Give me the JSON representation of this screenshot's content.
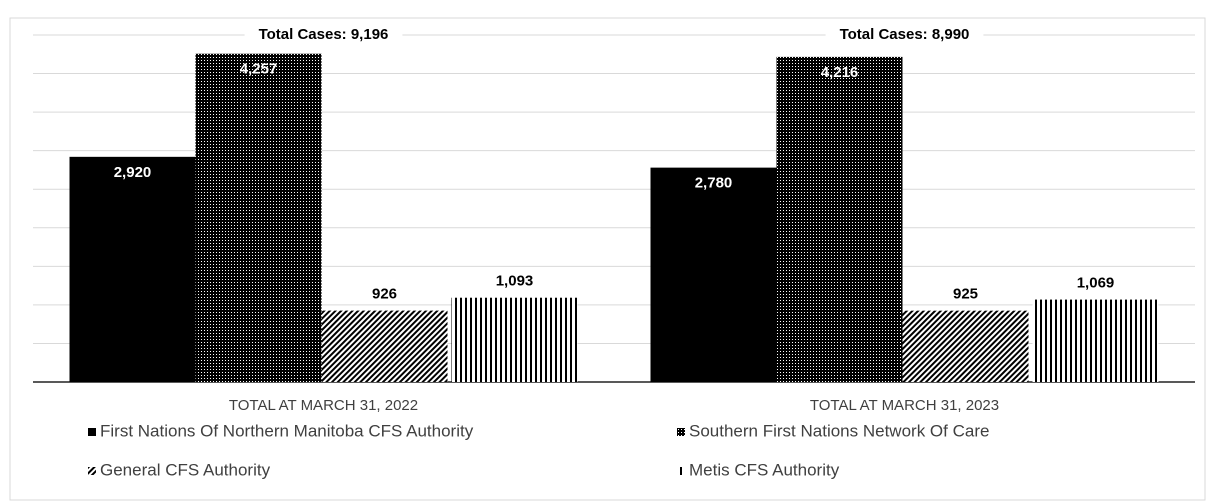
{
  "chart_data": {
    "type": "bar",
    "categories": [
      "TOTAL AT MARCH 31, 2022",
      "TOTAL AT MARCH 31, 2023"
    ],
    "series": [
      {
        "name": "First Nations Of Northern Manitoba CFS Authority",
        "color": "#000000",
        "pattern": "solid",
        "values": [
          2920,
          2780
        ],
        "value_labels": [
          "2,920",
          "2,780"
        ]
      },
      {
        "name": "Southern First Nations Network Of Care",
        "color": "#000000",
        "pattern": "dots",
        "values": [
          4257,
          4216
        ],
        "value_labels": [
          "4,257",
          "4,216"
        ]
      },
      {
        "name": "General CFS Authority",
        "color": "#000000",
        "pattern": "diagonal",
        "values": [
          926,
          925
        ],
        "value_labels": [
          "926",
          "925"
        ]
      },
      {
        "name": "Metis CFS Authority",
        "color": "#000000",
        "pattern": "vertical",
        "values": [
          1093,
          1069
        ],
        "value_labels": [
          "1,093",
          "1,069"
        ]
      }
    ],
    "annotations": [
      "Total Cases: 9,196",
      "Total Cases: 8,990"
    ],
    "ylim": [
      0,
      4500
    ],
    "yticks": [
      0,
      500,
      1000,
      1500,
      2000,
      2500,
      3000,
      3500,
      4000,
      4500
    ],
    "grid": true
  }
}
